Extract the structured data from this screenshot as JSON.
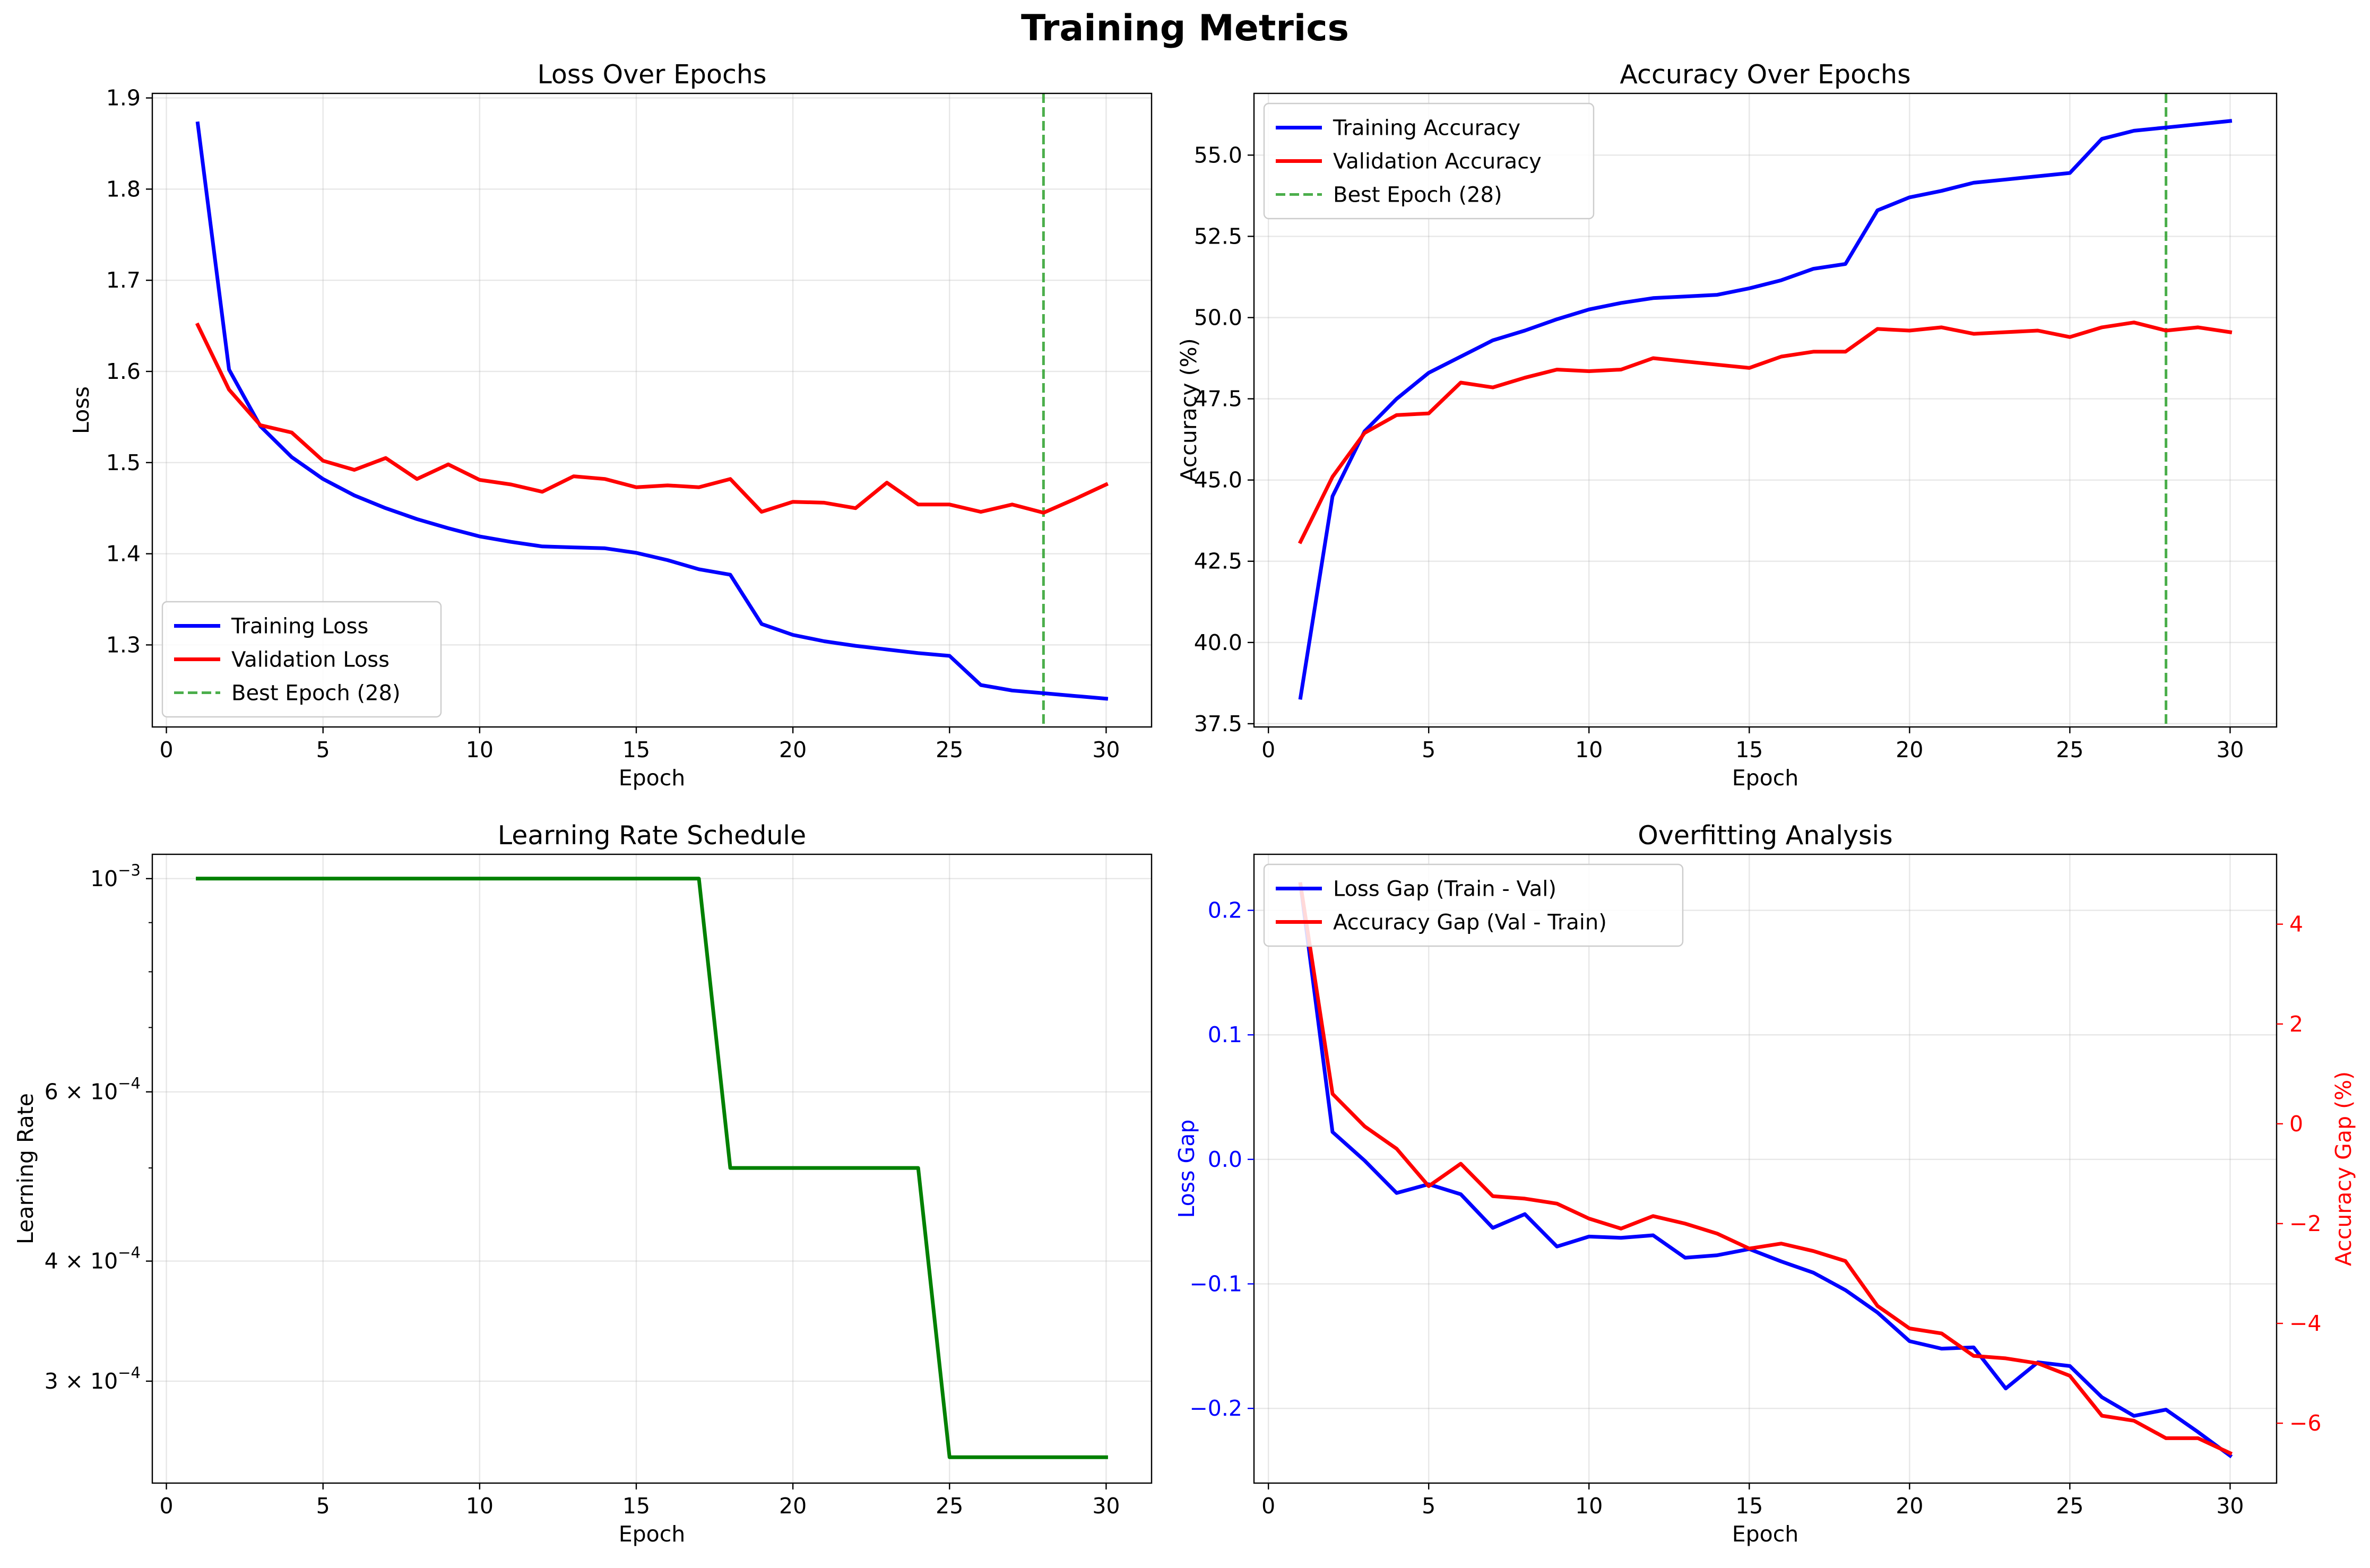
{
  "figure": {
    "title": "Training Metrics"
  },
  "colors": {
    "training": "#0000ff",
    "validation": "#ff0000",
    "best": "#2ca02c",
    "lr": "#008000"
  },
  "chart_data": [
    {
      "type": "line",
      "title": "Loss Over Epochs",
      "xlabel": "Epoch",
      "ylabel": "Loss",
      "xlim": [
        -0.45,
        31.45
      ],
      "ylim": [
        1.21,
        1.905
      ],
      "xticks": [
        0,
        5,
        10,
        15,
        20,
        25,
        30
      ],
      "yticks": [
        1.3,
        1.4,
        1.5,
        1.6,
        1.7,
        1.8,
        1.9
      ],
      "yticklabels": [
        "1.3",
        "1.4",
        "1.5",
        "1.6",
        "1.7",
        "1.8",
        "1.9"
      ],
      "grid": true,
      "legend": "lower left",
      "vline": {
        "x": 28,
        "label": "Best Epoch (28)"
      },
      "x": [
        1,
        2,
        3,
        4,
        5,
        6,
        7,
        8,
        9,
        10,
        11,
        12,
        13,
        14,
        15,
        16,
        17,
        18,
        19,
        20,
        21,
        22,
        23,
        24,
        25,
        26,
        27,
        28,
        29,
        30
      ],
      "series": [
        {
          "name": "Training Loss",
          "color": "#0000ff",
          "values": [
            1.872,
            1.602,
            1.54,
            1.506,
            1.482,
            1.464,
            1.45,
            1.438,
            1.428,
            1.419,
            1.413,
            1.408,
            1.407,
            1.406,
            1.401,
            1.393,
            1.383,
            1.377,
            1.323,
            1.311,
            1.304,
            1.299,
            1.295,
            1.291,
            1.288,
            1.256,
            1.25,
            1.247,
            1.244,
            1.241
          ]
        },
        {
          "name": "Validation Loss",
          "color": "#ff0000",
          "values": [
            1.651,
            1.58,
            1.541,
            1.533,
            1.502,
            1.492,
            1.505,
            1.482,
            1.498,
            1.481,
            1.476,
            1.468,
            1.485,
            1.482,
            1.473,
            1.475,
            1.473,
            1.482,
            1.446,
            1.457,
            1.456,
            1.45,
            1.478,
            1.454,
            1.454,
            1.446,
            1.454,
            1.445,
            1.46,
            1.476
          ]
        }
      ]
    },
    {
      "type": "line",
      "title": "Accuracy Over Epochs",
      "xlabel": "Epoch",
      "ylabel": "Accuracy (%)",
      "xlim": [
        -0.45,
        31.45
      ],
      "ylim": [
        37.4,
        56.9
      ],
      "xticks": [
        0,
        5,
        10,
        15,
        20,
        25,
        30
      ],
      "yticks": [
        37.5,
        40.0,
        42.5,
        45.0,
        47.5,
        50.0,
        52.5,
        55.0
      ],
      "yticklabels": [
        "37.5",
        "40.0",
        "42.5",
        "45.0",
        "47.5",
        "50.0",
        "52.5",
        "55.0"
      ],
      "grid": true,
      "legend": "upper left",
      "vline": {
        "x": 28,
        "label": "Best Epoch (28)"
      },
      "x": [
        1,
        2,
        3,
        4,
        5,
        6,
        7,
        8,
        9,
        10,
        11,
        12,
        13,
        14,
        15,
        16,
        17,
        18,
        19,
        20,
        21,
        22,
        23,
        24,
        25,
        26,
        27,
        28,
        29,
        30
      ],
      "series": [
        {
          "name": "Training Accuracy",
          "color": "#0000ff",
          "values": [
            38.3,
            44.5,
            46.5,
            47.5,
            48.3,
            48.8,
            49.3,
            49.6,
            49.95,
            50.25,
            50.45,
            50.6,
            50.65,
            50.7,
            50.9,
            51.15,
            51.5,
            51.65,
            53.3,
            53.7,
            53.9,
            54.15,
            54.25,
            54.35,
            54.45,
            55.5,
            55.75,
            55.85,
            55.95,
            56.05
          ]
        },
        {
          "name": "Validation Accuracy",
          "color": "#ff0000",
          "values": [
            43.1,
            45.1,
            46.45,
            47.0,
            47.05,
            48.0,
            47.85,
            48.15,
            48.4,
            48.35,
            48.4,
            48.75,
            48.65,
            48.55,
            48.45,
            48.8,
            48.95,
            48.95,
            49.65,
            49.6,
            49.7,
            49.5,
            49.55,
            49.6,
            49.4,
            49.7,
            49.85,
            49.6,
            49.7,
            49.55
          ]
        }
      ]
    },
    {
      "type": "line",
      "title": "Learning Rate Schedule",
      "xlabel": "Epoch",
      "ylabel": "Learning Rate",
      "yscale": "log",
      "xlim": [
        -0.45,
        31.45
      ],
      "ylim": [
        0.000235,
        0.00106
      ],
      "xticks": [
        0,
        5,
        10,
        15,
        20,
        25,
        30
      ],
      "ytick_values": [
        0.001,
        0.0006,
        0.0004,
        0.0003
      ],
      "ytick_labels": [
        {
          "base": "10",
          "exp": "−3"
        },
        {
          "base": "6 × 10",
          "exp": "−4"
        },
        {
          "base": "4 × 10",
          "exp": "−4"
        },
        {
          "base": "3 × 10",
          "exp": "−4"
        }
      ],
      "yminor": [
        0.0009,
        0.0008,
        0.0007,
        0.0005
      ],
      "grid": true,
      "x": [
        1,
        2,
        3,
        4,
        5,
        6,
        7,
        8,
        9,
        10,
        11,
        12,
        13,
        14,
        15,
        16,
        17,
        18,
        19,
        20,
        21,
        22,
        23,
        24,
        25,
        26,
        27,
        28,
        29,
        30
      ],
      "series": [
        {
          "color": "#008000",
          "values": [
            0.001,
            0.001,
            0.001,
            0.001,
            0.001,
            0.001,
            0.001,
            0.001,
            0.001,
            0.001,
            0.001,
            0.001,
            0.001,
            0.001,
            0.001,
            0.001,
            0.001,
            0.0005,
            0.0005,
            0.0005,
            0.0005,
            0.0005,
            0.0005,
            0.0005,
            0.00025,
            0.00025,
            0.00025,
            0.00025,
            0.00025,
            0.00025
          ]
        }
      ]
    },
    {
      "type": "line",
      "title": "Overfitting Analysis",
      "xlabel": "Epoch",
      "ylabel": "Loss Gap",
      "y2label": "Accuracy Gap (%)",
      "xlim": [
        -0.45,
        31.45
      ],
      "ylim": [
        -0.26,
        0.245
      ],
      "y2lim": [
        -7.2,
        5.4
      ],
      "xticks": [
        0,
        5,
        10,
        15,
        20,
        25,
        30
      ],
      "yticks": [
        -0.2,
        -0.1,
        0.0,
        0.1,
        0.2
      ],
      "yticklabels": [
        "−0.2",
        "−0.1",
        "0.0",
        "0.1",
        "0.2"
      ],
      "y2ticks": [
        -6,
        -4,
        -2,
        0,
        2,
        4
      ],
      "y2ticklabels": [
        "−6",
        "−4",
        "−2",
        "0",
        "2",
        "4"
      ],
      "grid": true,
      "legend": "upper left",
      "x": [
        1,
        2,
        3,
        4,
        5,
        6,
        7,
        8,
        9,
        10,
        11,
        12,
        13,
        14,
        15,
        16,
        17,
        18,
        19,
        20,
        21,
        22,
        23,
        24,
        25,
        26,
        27,
        28,
        29,
        30
      ],
      "series": [
        {
          "name": "Loss Gap (Train - Val)",
          "color": "#0000ff",
          "axis": "left",
          "values": [
            0.221,
            0.022,
            -0.001,
            -0.027,
            -0.02,
            -0.028,
            -0.055,
            -0.044,
            -0.07,
            -0.062,
            -0.063,
            -0.061,
            -0.079,
            -0.077,
            -0.072,
            -0.082,
            -0.091,
            -0.105,
            -0.123,
            -0.146,
            -0.152,
            -0.151,
            -0.184,
            -0.163,
            -0.166,
            -0.191,
            -0.206,
            -0.201,
            -0.219,
            -0.238
          ]
        },
        {
          "name": "Accuracy Gap (Val - Train)",
          "color": "#ff0000",
          "axis": "right",
          "values": [
            4.8,
            0.6,
            -0.05,
            -0.5,
            -1.25,
            -0.8,
            -1.45,
            -1.5,
            -1.6,
            -1.9,
            -2.1,
            -1.85,
            -2.0,
            -2.2,
            -2.5,
            -2.4,
            -2.55,
            -2.75,
            -3.65,
            -4.1,
            -4.2,
            -4.65,
            -4.7,
            -4.8,
            -5.05,
            -5.85,
            -5.95,
            -6.3,
            -6.3,
            -6.6
          ]
        }
      ]
    }
  ]
}
